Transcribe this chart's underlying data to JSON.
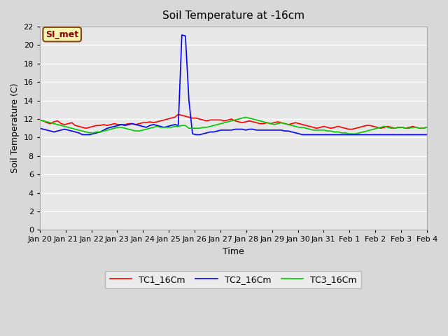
{
  "title": "Soil Temperature at -16cm",
  "xlabel": "Time",
  "ylabel": "Soil Temperature (C)",
  "ylim": [
    0,
    22
  ],
  "yticks": [
    0,
    2,
    4,
    6,
    8,
    10,
    12,
    14,
    16,
    18,
    20,
    22
  ],
  "xtick_labels": [
    "Jan 20",
    "Jan 21",
    "Jan 22",
    "Jan 23",
    "Jan 24",
    "Jan 25",
    "Jan 26",
    "Jan 27",
    "Jan 28",
    "Jan 29",
    "Jan 30",
    "Jan 31",
    "Feb 1",
    "Feb 2",
    "Feb 3",
    "Feb 4"
  ],
  "bg_color": "#e8e8e8",
  "grid_color": "#ffffff",
  "annotation_text": "SI_met",
  "annotation_bg": "#f5f5b0",
  "annotation_border": "#8B4513",
  "legend": [
    "TC1_16Cm",
    "TC2_16Cm",
    "TC3_16Cm"
  ],
  "line_colors": [
    "#ff0000",
    "#0000ff",
    "#00cc00"
  ],
  "line_width": 1.2,
  "tc1": [
    11.9,
    11.8,
    11.6,
    11.5,
    11.7,
    11.8,
    11.5,
    11.4,
    11.5,
    11.6,
    11.3,
    11.2,
    11.1,
    11.0,
    11.1,
    11.2,
    11.3,
    11.3,
    11.4,
    11.3,
    11.4,
    11.5,
    11.4,
    11.4,
    11.4,
    11.5,
    11.5,
    11.4,
    11.5,
    11.6,
    11.6,
    11.7,
    11.6,
    11.7,
    11.8,
    11.9,
    12.0,
    12.1,
    12.2,
    12.5,
    12.4,
    12.3,
    12.2,
    12.1,
    12.1,
    12.0,
    11.9,
    11.8,
    11.9,
    11.9,
    11.9,
    11.9,
    11.8,
    11.9,
    12.0,
    11.8,
    11.7,
    11.6,
    11.7,
    11.8,
    11.7,
    11.6,
    11.5,
    11.5,
    11.6,
    11.5,
    11.6,
    11.7,
    11.6,
    11.5,
    11.4,
    11.5,
    11.6,
    11.5,
    11.4,
    11.3,
    11.2,
    11.1,
    11.0,
    11.1,
    11.2,
    11.1,
    11.0,
    11.1,
    11.2,
    11.1,
    11.0,
    10.9,
    10.9,
    11.0,
    11.1,
    11.2,
    11.3,
    11.3,
    11.2,
    11.1,
    11.0,
    11.1,
    11.2,
    11.1,
    11.0,
    11.1,
    11.1,
    11.0,
    11.1,
    11.2,
    11.1,
    11.0,
    11.0,
    11.1
  ],
  "tc2": [
    11.0,
    10.9,
    10.8,
    10.7,
    10.6,
    10.7,
    10.8,
    10.9,
    10.8,
    10.7,
    10.6,
    10.5,
    10.3,
    10.3,
    10.3,
    10.4,
    10.5,
    10.6,
    10.8,
    11.0,
    11.1,
    11.2,
    11.3,
    11.4,
    11.3,
    11.4,
    11.5,
    11.4,
    11.3,
    11.2,
    11.1,
    11.3,
    11.4,
    11.3,
    11.2,
    11.1,
    11.2,
    11.3,
    11.4,
    11.3,
    21.1,
    21.0,
    14.0,
    10.4,
    10.3,
    10.3,
    10.4,
    10.5,
    10.6,
    10.6,
    10.7,
    10.8,
    10.8,
    10.8,
    10.8,
    10.9,
    10.9,
    10.9,
    10.8,
    10.9,
    10.9,
    10.8,
    10.8,
    10.8,
    10.8,
    10.8,
    10.8,
    10.8,
    10.8,
    10.7,
    10.7,
    10.6,
    10.5,
    10.4,
    10.3,
    10.3,
    10.3,
    10.3,
    10.3,
    10.3,
    10.3,
    10.3,
    10.3,
    10.3,
    10.3,
    10.3,
    10.3,
    10.3,
    10.3,
    10.3,
    10.3,
    10.3,
    10.3,
    10.3,
    10.3,
    10.3,
    10.3,
    10.3,
    10.3,
    10.3,
    10.3,
    10.3,
    10.3,
    10.3,
    10.3,
    10.3,
    10.3,
    10.3,
    10.3,
    10.3
  ],
  "tc3": [
    11.9,
    11.8,
    11.7,
    11.6,
    11.5,
    11.4,
    11.3,
    11.2,
    11.1,
    11.0,
    10.9,
    10.8,
    10.7,
    10.6,
    10.5,
    10.5,
    10.6,
    10.6,
    10.7,
    10.8,
    10.9,
    11.0,
    11.1,
    11.1,
    11.0,
    10.9,
    10.8,
    10.7,
    10.7,
    10.8,
    10.9,
    11.0,
    11.1,
    11.2,
    11.1,
    11.1,
    11.1,
    11.1,
    11.2,
    11.2,
    11.3,
    11.3,
    11.0,
    11.0,
    11.0,
    11.0,
    11.1,
    11.1,
    11.2,
    11.3,
    11.4,
    11.5,
    11.6,
    11.7,
    11.8,
    11.9,
    12.0,
    12.1,
    12.2,
    12.1,
    12.0,
    11.9,
    11.8,
    11.7,
    11.6,
    11.5,
    11.4,
    11.5,
    11.6,
    11.5,
    11.4,
    11.3,
    11.2,
    11.1,
    11.1,
    11.0,
    10.9,
    10.8,
    10.8,
    10.8,
    10.8,
    10.7,
    10.7,
    10.6,
    10.6,
    10.5,
    10.5,
    10.4,
    10.4,
    10.4,
    10.5,
    10.6,
    10.7,
    10.8,
    10.9,
    11.0,
    11.1,
    11.2,
    11.1,
    11.0,
    11.0,
    11.1,
    11.1,
    11.0,
    11.0,
    11.1,
    11.1,
    11.0,
    11.0,
    11.1
  ]
}
